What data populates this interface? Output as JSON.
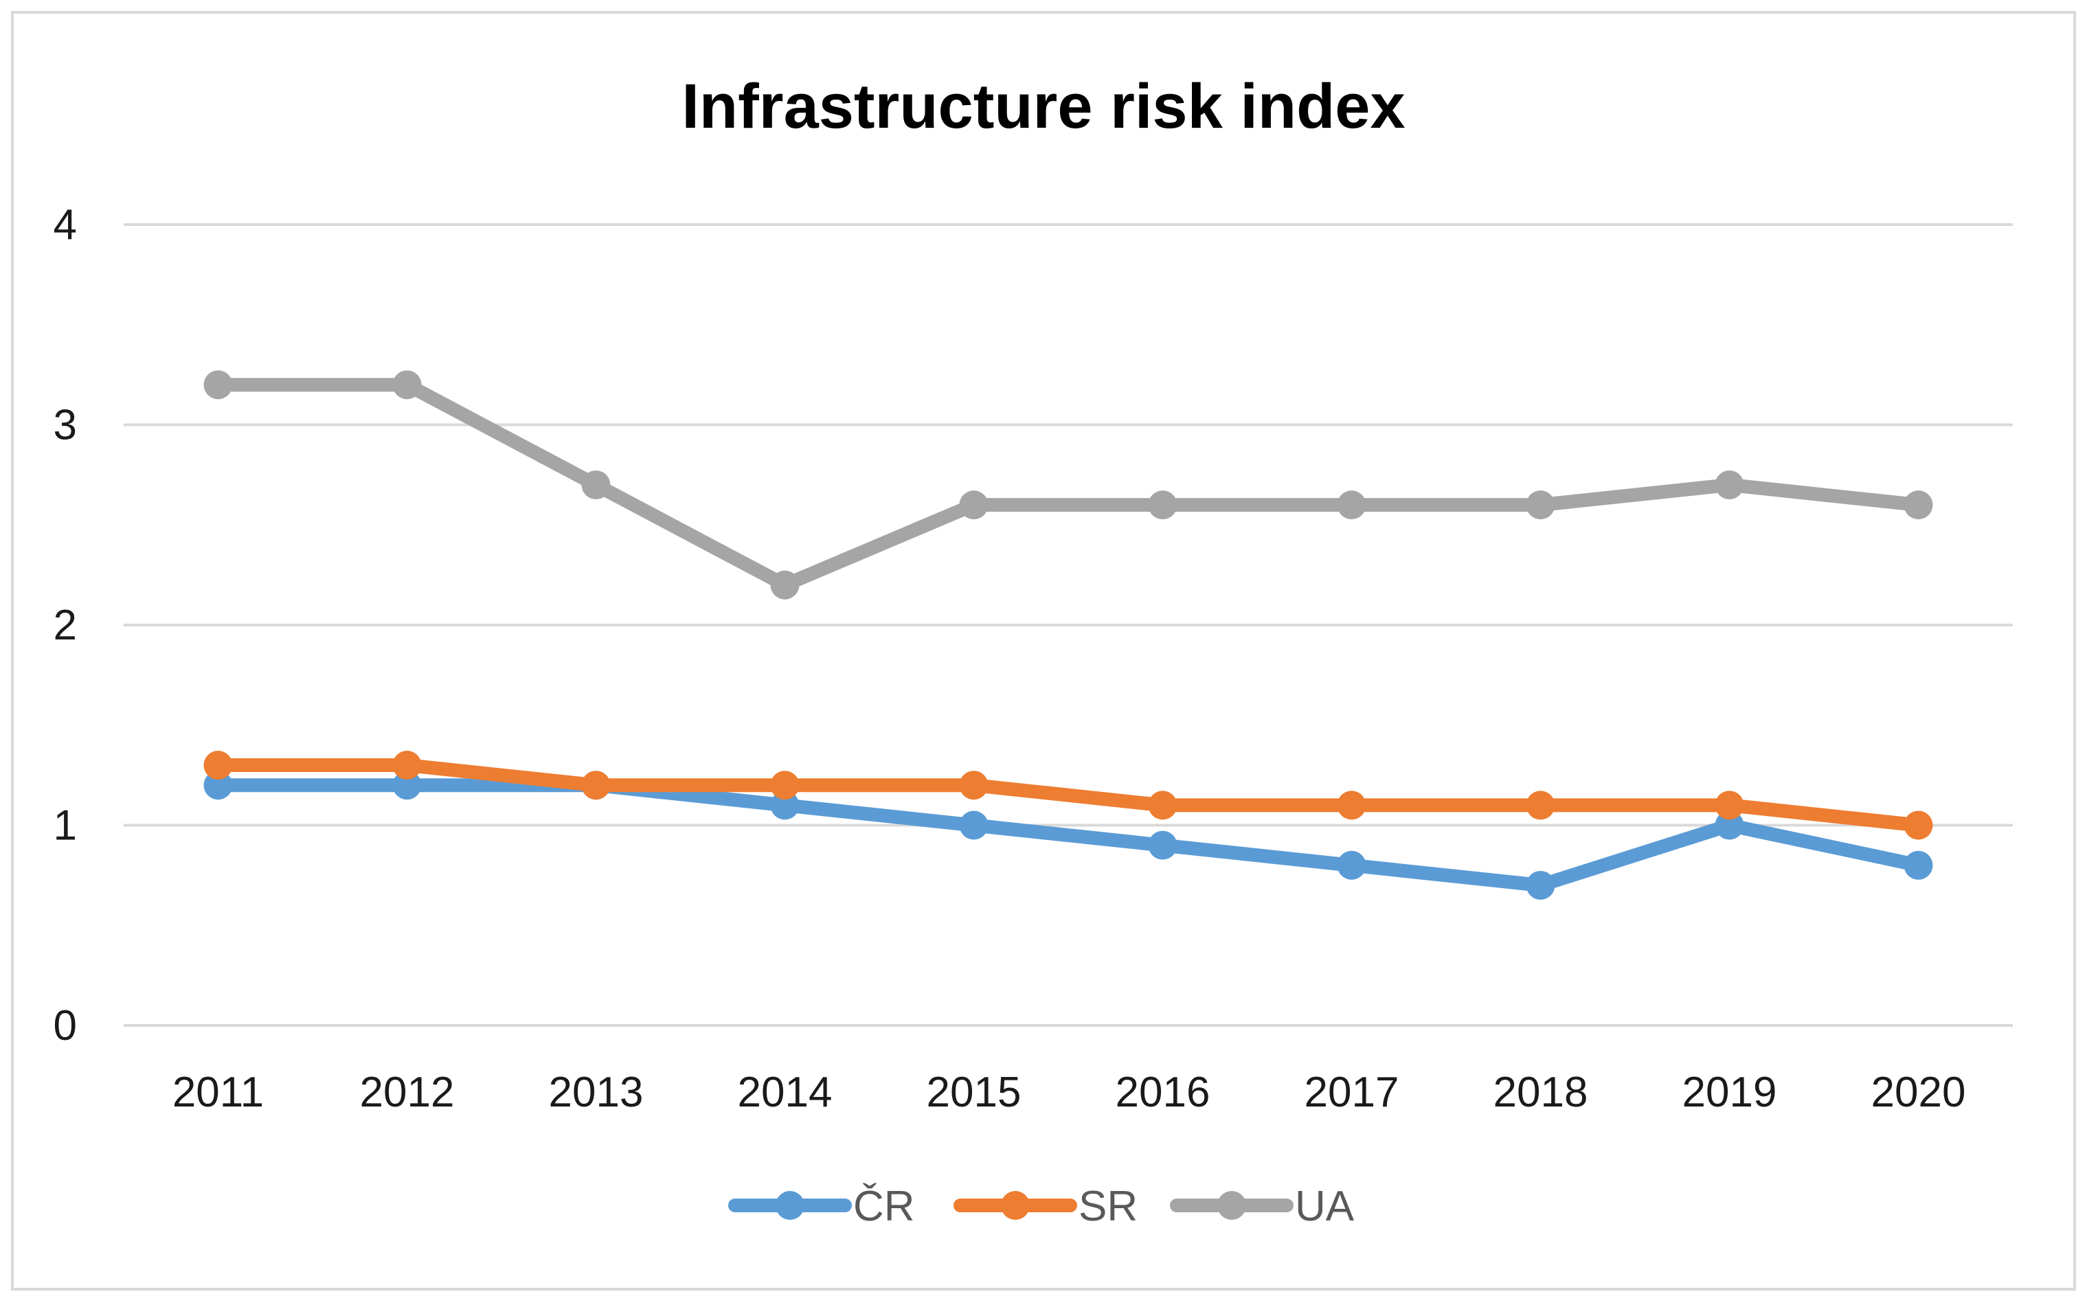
{
  "chart_data": {
    "type": "line",
    "title": "Infrastructure risk index",
    "xlabel": "",
    "ylabel": "",
    "categories": [
      "2011",
      "2012",
      "2013",
      "2014",
      "2015",
      "2016",
      "2017",
      "2018",
      "2019",
      "2020"
    ],
    "ylim": [
      0,
      4
    ],
    "yticks": [
      0,
      1,
      2,
      3,
      4
    ],
    "grid": true,
    "legend_position": "bottom",
    "series": [
      {
        "name": "ČR",
        "color": "#5b9bd5",
        "values": [
          1.2,
          1.2,
          1.2,
          1.1,
          1.0,
          0.9,
          0.8,
          0.7,
          1.0,
          0.8
        ]
      },
      {
        "name": "SR",
        "color": "#ed7d31",
        "values": [
          1.3,
          1.3,
          1.2,
          1.2,
          1.2,
          1.1,
          1.1,
          1.1,
          1.1,
          1.0
        ]
      },
      {
        "name": "UA",
        "color": "#a5a5a5",
        "values": [
          3.2,
          3.2,
          2.7,
          2.2,
          2.6,
          2.6,
          2.6,
          2.6,
          2.7,
          2.6
        ]
      }
    ]
  }
}
